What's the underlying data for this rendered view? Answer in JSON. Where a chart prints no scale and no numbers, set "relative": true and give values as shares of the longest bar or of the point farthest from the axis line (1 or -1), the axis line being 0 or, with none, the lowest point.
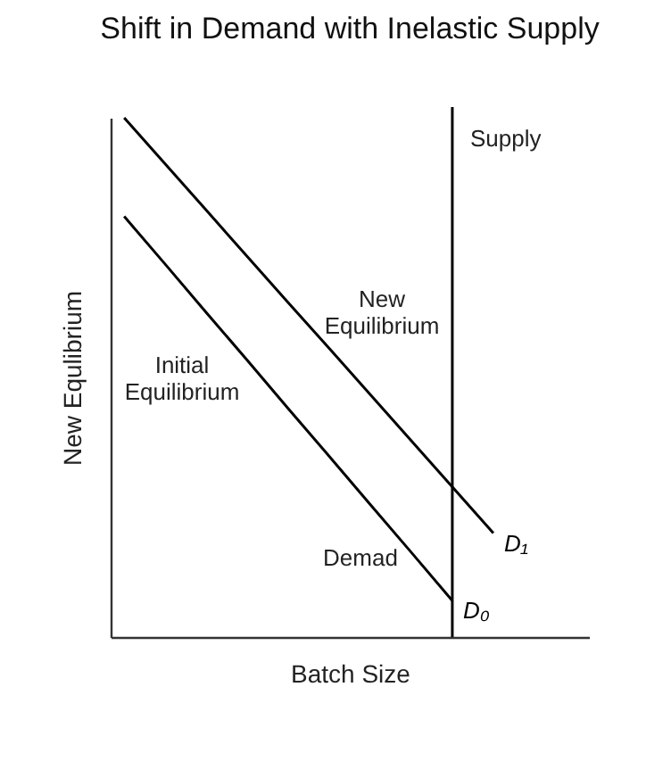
{
  "chart_data": {
    "type": "line",
    "title": "Shift in Demand with Inelastic Supply",
    "xlabel": "Batch Size",
    "ylabel": "New Equlibrium",
    "relative": true,
    "categories": [
      null,
      null,
      null,
      null,
      null,
      null,
      null,
      null,
      null,
      null,
      null,
      null
    ],
    "series": [
      {
        "name": "D₁",
        "color": "#000000",
        "values": [
          1,
          0.911,
          0.822,
          0.733,
          0.644,
          0.556,
          0.467,
          0.378,
          0.289,
          0.2,
          null,
          null
        ]
      },
      {
        "name": "D₀",
        "color": "#000000",
        "values": [
          0.81,
          0.718,
          0.625,
          0.533,
          0.44,
          0.348,
          0.255,
          0.163,
          0.07,
          null,
          null,
          null
        ]
      }
    ],
    "ref_lines": [
      {
        "axis": "x",
        "label": "Supply",
        "color": "#000000"
      }
    ],
    "annotations": [
      "New\nEquilibrium",
      "Initial\nEquilibrium",
      "Demad"
    ],
    "grid": false,
    "legend": false,
    "marker": "none",
    "line_style": "solid"
  }
}
